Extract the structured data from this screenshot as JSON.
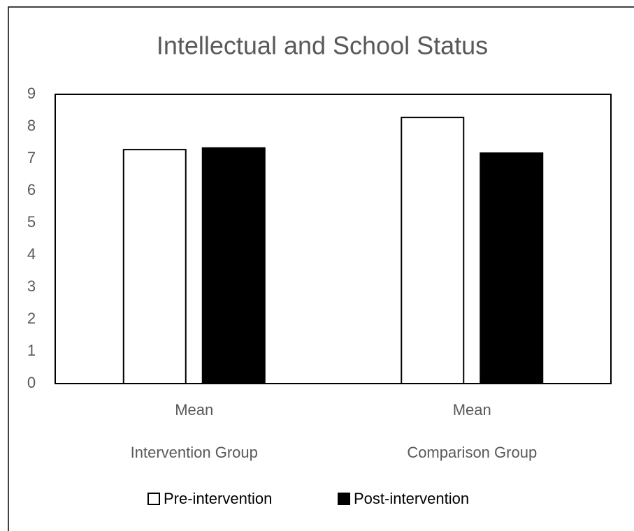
{
  "chart_data": {
    "type": "bar",
    "title": "Intellectual and School Status",
    "categories": [
      "Mean",
      "Mean"
    ],
    "groups": [
      "Intervention Group",
      "Comparison Group"
    ],
    "series": [
      {
        "name": "Pre-intervention",
        "color": "#ffffff",
        "values": [
          7.28,
          8.28
        ]
      },
      {
        "name": "Post-intervention",
        "color": "#000000",
        "values": [
          7.33,
          7.17
        ]
      }
    ],
    "ylim": [
      0,
      9
    ],
    "yticks": [
      0,
      1,
      2,
      3,
      4,
      5,
      6,
      7,
      8,
      9
    ],
    "grid": false,
    "legend": "bottom"
  }
}
